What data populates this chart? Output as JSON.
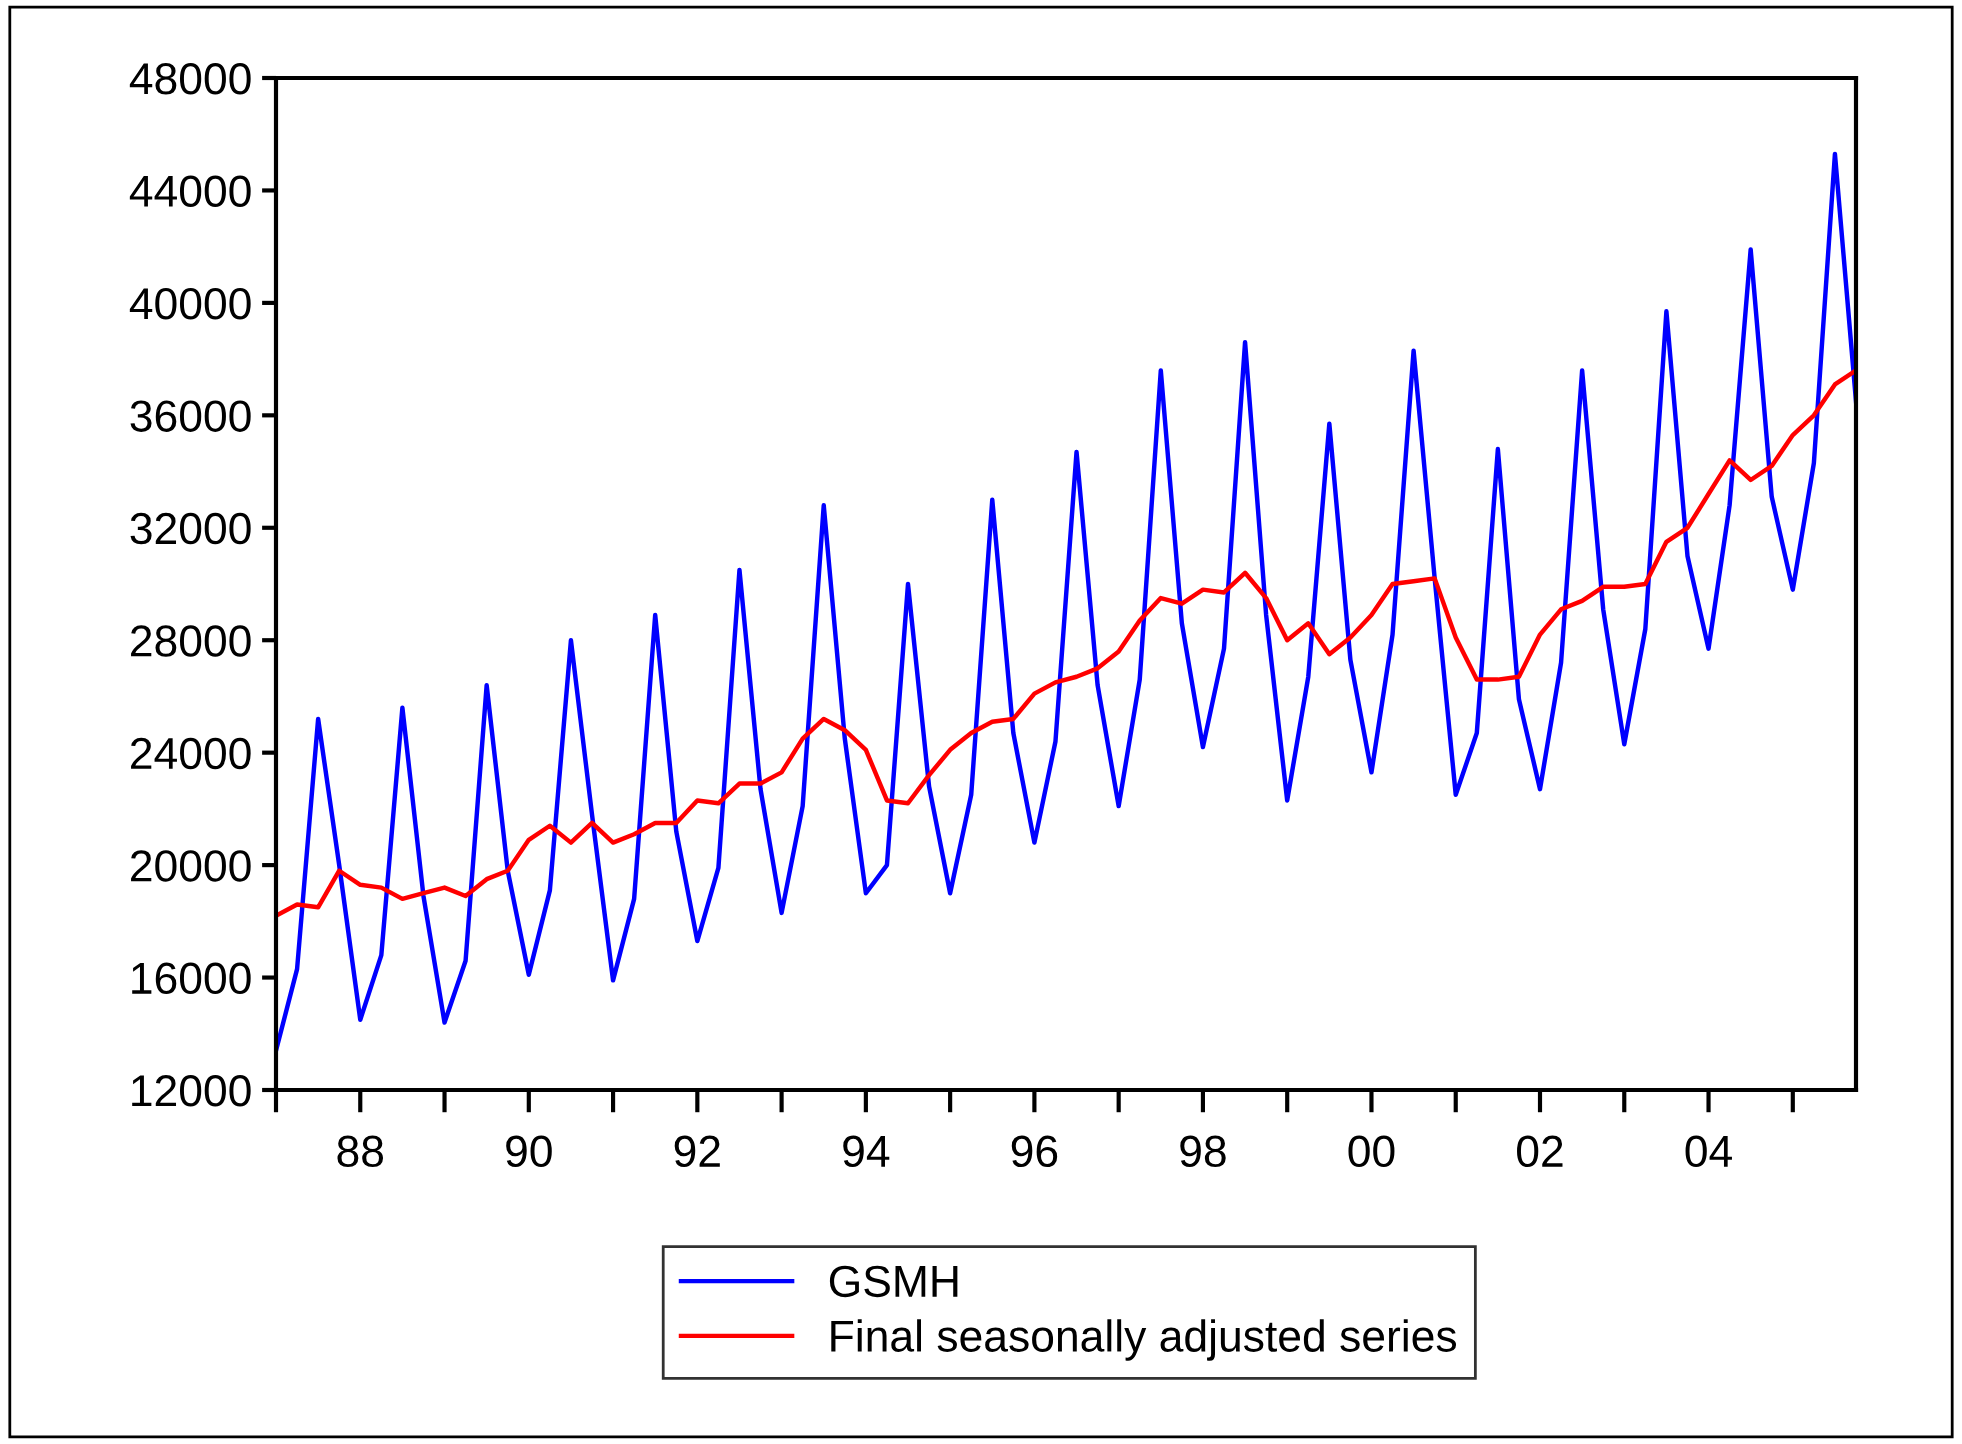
{
  "chart_data": {
    "type": "line",
    "x": [
      "1987-01",
      "1987-04",
      "1987-07",
      "1987-10",
      "1988-01",
      "1988-04",
      "1988-07",
      "1988-10",
      "1989-01",
      "1989-04",
      "1989-07",
      "1989-10",
      "1990-01",
      "1990-04",
      "1990-07",
      "1990-10",
      "1991-01",
      "1991-04",
      "1991-07",
      "1991-10",
      "1992-01",
      "1992-04",
      "1992-07",
      "1992-10",
      "1993-01",
      "1993-04",
      "1993-07",
      "1993-10",
      "1994-01",
      "1994-04",
      "1994-07",
      "1994-10",
      "1995-01",
      "1995-04",
      "1995-07",
      "1995-10",
      "1996-01",
      "1996-04",
      "1996-07",
      "1996-10",
      "1997-01",
      "1997-04",
      "1997-07",
      "1997-10",
      "1998-01",
      "1998-04",
      "1998-07",
      "1998-10",
      "1999-01",
      "1999-04",
      "1999-07",
      "1999-10",
      "2000-01",
      "2000-04",
      "2000-07",
      "2000-10",
      "2001-01",
      "2001-04",
      "2001-07",
      "2001-10",
      "2002-01",
      "2002-04",
      "2002-07",
      "2002-10",
      "2003-01",
      "2003-04",
      "2003-07",
      "2003-10",
      "2004-01",
      "2004-04",
      "2004-07",
      "2004-10",
      "2005-01",
      "2005-04",
      "2005-07",
      "2005-10"
    ],
    "series": [
      {
        "name": "GSMH",
        "color": "#0000ff",
        "values": [
          13400,
          16300,
          25200,
          20000,
          14500,
          16800,
          25600,
          18900,
          14400,
          16600,
          26400,
          19800,
          16100,
          19100,
          28000,
          21800,
          15900,
          18800,
          28900,
          21200,
          17300,
          19900,
          30500,
          22700,
          18300,
          22100,
          32800,
          24500,
          19000,
          20000,
          30000,
          22800,
          19000,
          22500,
          33000,
          24700,
          20800,
          24400,
          34700,
          26400,
          22100,
          26600,
          37600,
          28600,
          24200,
          27700,
          38600,
          28900,
          22300,
          26700,
          35700,
          27300,
          23300,
          28200,
          38300,
          30200,
          22500,
          24700,
          34800,
          25900,
          22700,
          27200,
          37600,
          29100,
          24300,
          28400,
          39700,
          31000,
          27700,
          32800,
          41900,
          33100,
          29800,
          34300,
          45300,
          36500
        ]
      },
      {
        "name": "Final seasonally adjusted series",
        "color": "#ff0000",
        "values": [
          18200,
          18600,
          18500,
          19800,
          19300,
          19200,
          18800,
          19000,
          19200,
          18900,
          19500,
          19800,
          20900,
          21400,
          20800,
          21500,
          20800,
          21100,
          21500,
          21500,
          22300,
          22200,
          22900,
          22900,
          23300,
          24500,
          25200,
          24800,
          24100,
          22300,
          22200,
          23200,
          24100,
          24700,
          25100,
          25200,
          26100,
          26500,
          26700,
          27000,
          27600,
          28700,
          29500,
          29300,
          29800,
          29700,
          30400,
          29500,
          28000,
          28600,
          27500,
          28100,
          28900,
          30000,
          30100,
          30200,
          28100,
          26600,
          26600,
          26700,
          28200,
          29100,
          29400,
          29900,
          29900,
          30000,
          31500,
          32000,
          33200,
          34400,
          33700,
          34200,
          35300,
          36000,
          37100,
          37600
        ]
      }
    ],
    "xlim": [
      "1987-01",
      "2005-10"
    ],
    "xticks": [
      {
        "value": "1987",
        "label": null
      },
      {
        "value": "1988",
        "label": "88"
      },
      {
        "value": "1989",
        "label": null
      },
      {
        "value": "1990",
        "label": "90"
      },
      {
        "value": "1991",
        "label": null
      },
      {
        "value": "1992",
        "label": "92"
      },
      {
        "value": "1993",
        "label": null
      },
      {
        "value": "1994",
        "label": "94"
      },
      {
        "value": "1995",
        "label": null
      },
      {
        "value": "1996",
        "label": "96"
      },
      {
        "value": "1997",
        "label": null
      },
      {
        "value": "1998",
        "label": "98"
      },
      {
        "value": "1999",
        "label": null
      },
      {
        "value": "2000",
        "label": "00"
      },
      {
        "value": "2001",
        "label": null
      },
      {
        "value": "2002",
        "label": "02"
      },
      {
        "value": "2003",
        "label": null
      },
      {
        "value": "2004",
        "label": "04"
      },
      {
        "value": "2005",
        "label": null
      }
    ],
    "ylim": [
      12000,
      48000
    ],
    "yticks": [
      12000,
      16000,
      20000,
      24000,
      28000,
      32000,
      36000,
      40000,
      44000,
      48000
    ],
    "grid": false,
    "legend": "bottom",
    "marker": "none",
    "line_style": "solid"
  }
}
